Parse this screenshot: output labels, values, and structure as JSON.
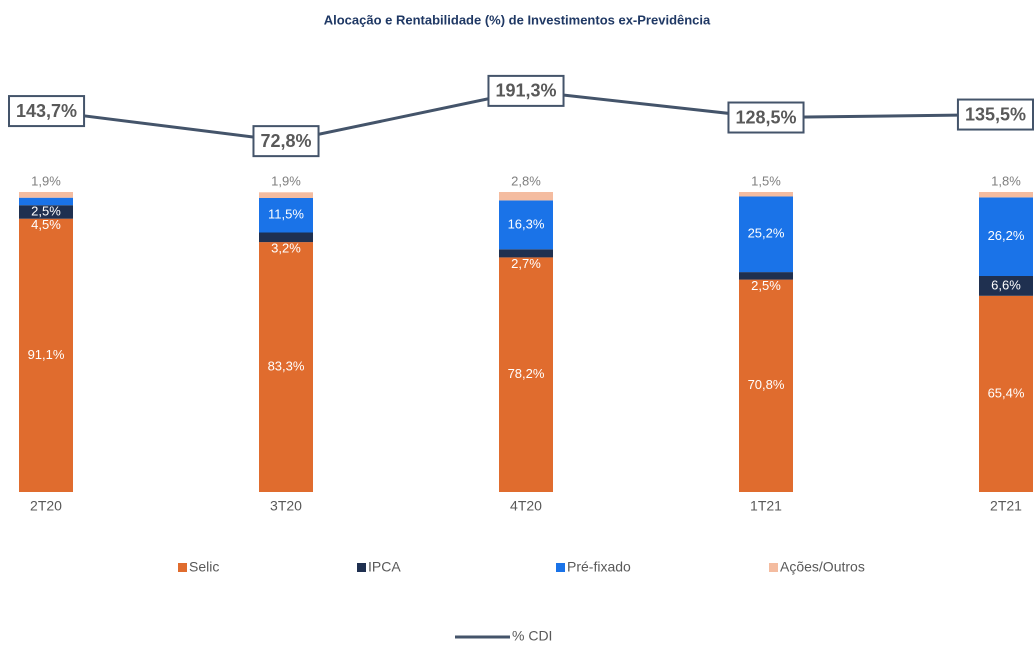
{
  "chart_data": {
    "type": "bar",
    "stacked": true,
    "title": "Alocação e Rentabilidade (%) de Investimentos ex-Previdência",
    "categories": [
      "2T20",
      "3T20",
      "4T20",
      "1T21",
      "2T21"
    ],
    "ylim": [
      0,
      100
    ],
    "y2lim": [
      0,
      250
    ],
    "series": [
      {
        "name": "Selic",
        "color": "#E06C2E",
        "values": [
          91.1,
          83.3,
          78.2,
          70.8,
          65.4
        ],
        "value_labels": [
          "91,1%",
          "83,3%",
          "78,2%",
          "70,8%",
          "65,4%"
        ]
      },
      {
        "name": "IPCA",
        "color": "#1F3050",
        "values": [
          4.5,
          3.2,
          2.7,
          2.5,
          6.6
        ],
        "value_labels": [
          "4,5%",
          "3,2%",
          "2,7%",
          "2,5%",
          "6,6%"
        ]
      },
      {
        "name": "Pré-fixado",
        "color": "#1A73E8",
        "values": [
          2.5,
          11.5,
          16.3,
          25.2,
          26.2
        ],
        "value_labels": [
          "2,5%",
          "11,5%",
          "16,3%",
          "25,2%",
          "26,2%"
        ]
      },
      {
        "name": "Ações/Outros",
        "color": "#F4BCA0",
        "values": [
          1.9,
          1.9,
          2.8,
          1.5,
          1.8
        ],
        "value_labels": [
          "1,9%",
          "1,9%",
          "2,8%",
          "1,5%",
          "1,8%"
        ]
      },
      {
        "name": "% CDI",
        "type": "line",
        "axis": "y2",
        "color": "#44546A",
        "values": [
          143.7,
          72.8,
          191.3,
          128.5,
          135.5
        ],
        "value_labels": [
          "143,7%",
          "72,8%",
          "191,3%",
          "128,5%",
          "135,5%"
        ]
      }
    ]
  }
}
